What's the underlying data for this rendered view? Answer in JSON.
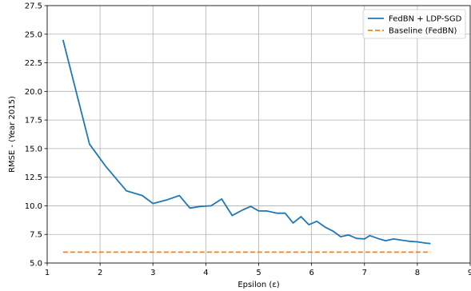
{
  "chart_data": {
    "type": "line",
    "xlabel": "Epsilon (ε)",
    "ylabel": "RMSE - (Year 2015)",
    "xlim": [
      1,
      9
    ],
    "ylim": [
      5.0,
      27.5
    ],
    "x_ticks": [
      "1",
      "2",
      "3",
      "4",
      "5",
      "6",
      "7",
      "8",
      "9"
    ],
    "y_ticks": [
      "5.0",
      "7.5",
      "10.0",
      "12.5",
      "15.0",
      "17.5",
      "20.0",
      "22.5",
      "25.0",
      "27.5"
    ],
    "x_tick_values": [
      1,
      2,
      3,
      4,
      5,
      6,
      7,
      8,
      9
    ],
    "y_tick_values": [
      5.0,
      7.5,
      10.0,
      12.5,
      15.0,
      17.5,
      20.0,
      22.5,
      25.0,
      27.5
    ],
    "grid": true,
    "legend_position": "top-right",
    "series": [
      {
        "name": "FedBN + LDP-SGD",
        "color": "#1f77b4",
        "style": "solid",
        "x": [
          1.3,
          1.8,
          2.1,
          2.5,
          2.8,
          3.0,
          3.25,
          3.5,
          3.7,
          3.9,
          4.1,
          4.3,
          4.5,
          4.7,
          4.85,
          5.0,
          5.15,
          5.35,
          5.5,
          5.65,
          5.8,
          5.95,
          6.1,
          6.25,
          6.4,
          6.55,
          6.7,
          6.85,
          7.0,
          7.1,
          7.25,
          7.4,
          7.55,
          7.7,
          7.85,
          8.0,
          8.15,
          8.25
        ],
        "y": [
          24.5,
          15.4,
          13.5,
          11.3,
          10.9,
          10.2,
          10.5,
          10.9,
          9.8,
          9.95,
          10.0,
          10.6,
          9.15,
          9.65,
          9.95,
          9.55,
          9.55,
          9.35,
          9.35,
          8.5,
          9.05,
          8.35,
          8.65,
          8.15,
          7.8,
          7.3,
          7.45,
          7.15,
          7.1,
          7.4,
          7.15,
          6.95,
          7.1,
          7.0,
          6.9,
          6.85,
          6.75,
          6.7
        ]
      },
      {
        "name": "Baseline (FedBN)",
        "color": "#ff7f0e",
        "style": "dashed",
        "x": [
          1.3,
          8.25
        ],
        "y": [
          5.95,
          5.95
        ]
      }
    ]
  }
}
